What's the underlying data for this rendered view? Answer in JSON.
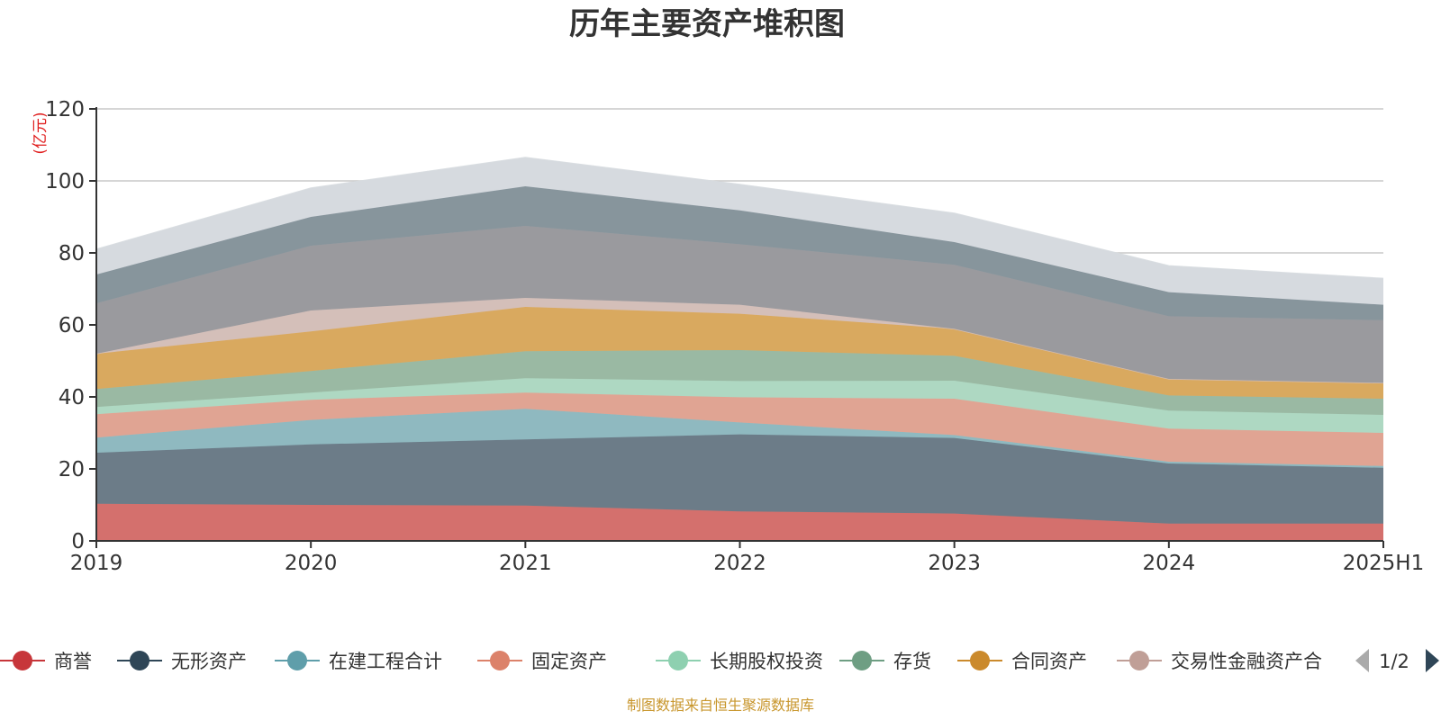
{
  "chart_data": {
    "type": "area",
    "stacked": true,
    "title": "历年主要资产堆积图",
    "unit_label": "(亿元)",
    "categories": [
      "2019",
      "2020",
      "2021",
      "2022",
      "2023",
      "2024",
      "2025H1"
    ],
    "ylim": [
      0,
      120
    ],
    "yticks": [
      0,
      20,
      40,
      60,
      80,
      100,
      120
    ],
    "grid": true,
    "legend_position": "bottom",
    "legend_page": "1/2",
    "series": [
      {
        "name": "商誉",
        "color": "#d4706d",
        "values": [
          10.3,
          10.0,
          9.8,
          8.2,
          7.6,
          4.8,
          4.8
        ]
      },
      {
        "name": "无形资产",
        "color": "#6c7c88",
        "values": [
          14.2,
          16.8,
          18.4,
          21.4,
          21.0,
          16.7,
          15.5
        ]
      },
      {
        "name": "在建工程合计",
        "color": "#8fb9c0",
        "values": [
          4.2,
          6.8,
          8.5,
          3.3,
          0.8,
          0.5,
          0.5
        ]
      },
      {
        "name": "固定资产",
        "color": "#e0a493",
        "values": [
          6.5,
          5.6,
          4.5,
          7.0,
          10.1,
          9.2,
          9.2
        ]
      },
      {
        "name": "长期股权投资",
        "color": "#aed8c2",
        "values": [
          2.0,
          2.0,
          4.0,
          4.5,
          5.0,
          5.0,
          5.0
        ]
      },
      {
        "name": "存货",
        "color": "#9ab9a3",
        "values": [
          5.0,
          6.0,
          7.5,
          8.6,
          6.9,
          4.2,
          4.5
        ]
      },
      {
        "name": "合同资产",
        "color": "#d9a95f",
        "values": [
          9.8,
          11.0,
          12.3,
          10.1,
          7.5,
          4.6,
          4.4
        ]
      },
      {
        "name": "交易性金融资产合计",
        "color": "#d4bfb9",
        "values": [
          0.0,
          5.8,
          2.5,
          2.5,
          0.0,
          0.0,
          0.0
        ]
      },
      {
        "name": "",
        "color": "#9a9a9e",
        "values": [
          14.0,
          18.0,
          20.0,
          16.8,
          17.8,
          17.4,
          17.4
        ]
      },
      {
        "name": "",
        "color": "#87959c",
        "values": [
          8.0,
          8.0,
          11.0,
          9.4,
          6.3,
          6.7,
          4.3
        ]
      },
      {
        "name": "",
        "color": "#d6dadf",
        "values": [
          7.0,
          8.0,
          8.0,
          7.2,
          8.0,
          7.3,
          7.3
        ]
      }
    ],
    "legend_items": [
      {
        "name": "商誉",
        "color": "#c7363a"
      },
      {
        "name": "无形资产",
        "color": "#2f4657"
      },
      {
        "name": "在建工程合计",
        "color": "#5f9eaa"
      },
      {
        "name": "固定资产",
        "color": "#dc826a"
      },
      {
        "name": "长期股权投资",
        "color": "#8ed0b0"
      },
      {
        "name": "存货",
        "color": "#6e9e83"
      },
      {
        "name": "合同资产",
        "color": "#cb8a2c"
      },
      {
        "name": "交易性金融资产合",
        "color": "#c09f97"
      }
    ]
  },
  "footer": {
    "source": "制图数据来自恒生聚源数据库"
  },
  "icons": {
    "prev": "caret-left-icon",
    "next": "caret-right-icon"
  }
}
